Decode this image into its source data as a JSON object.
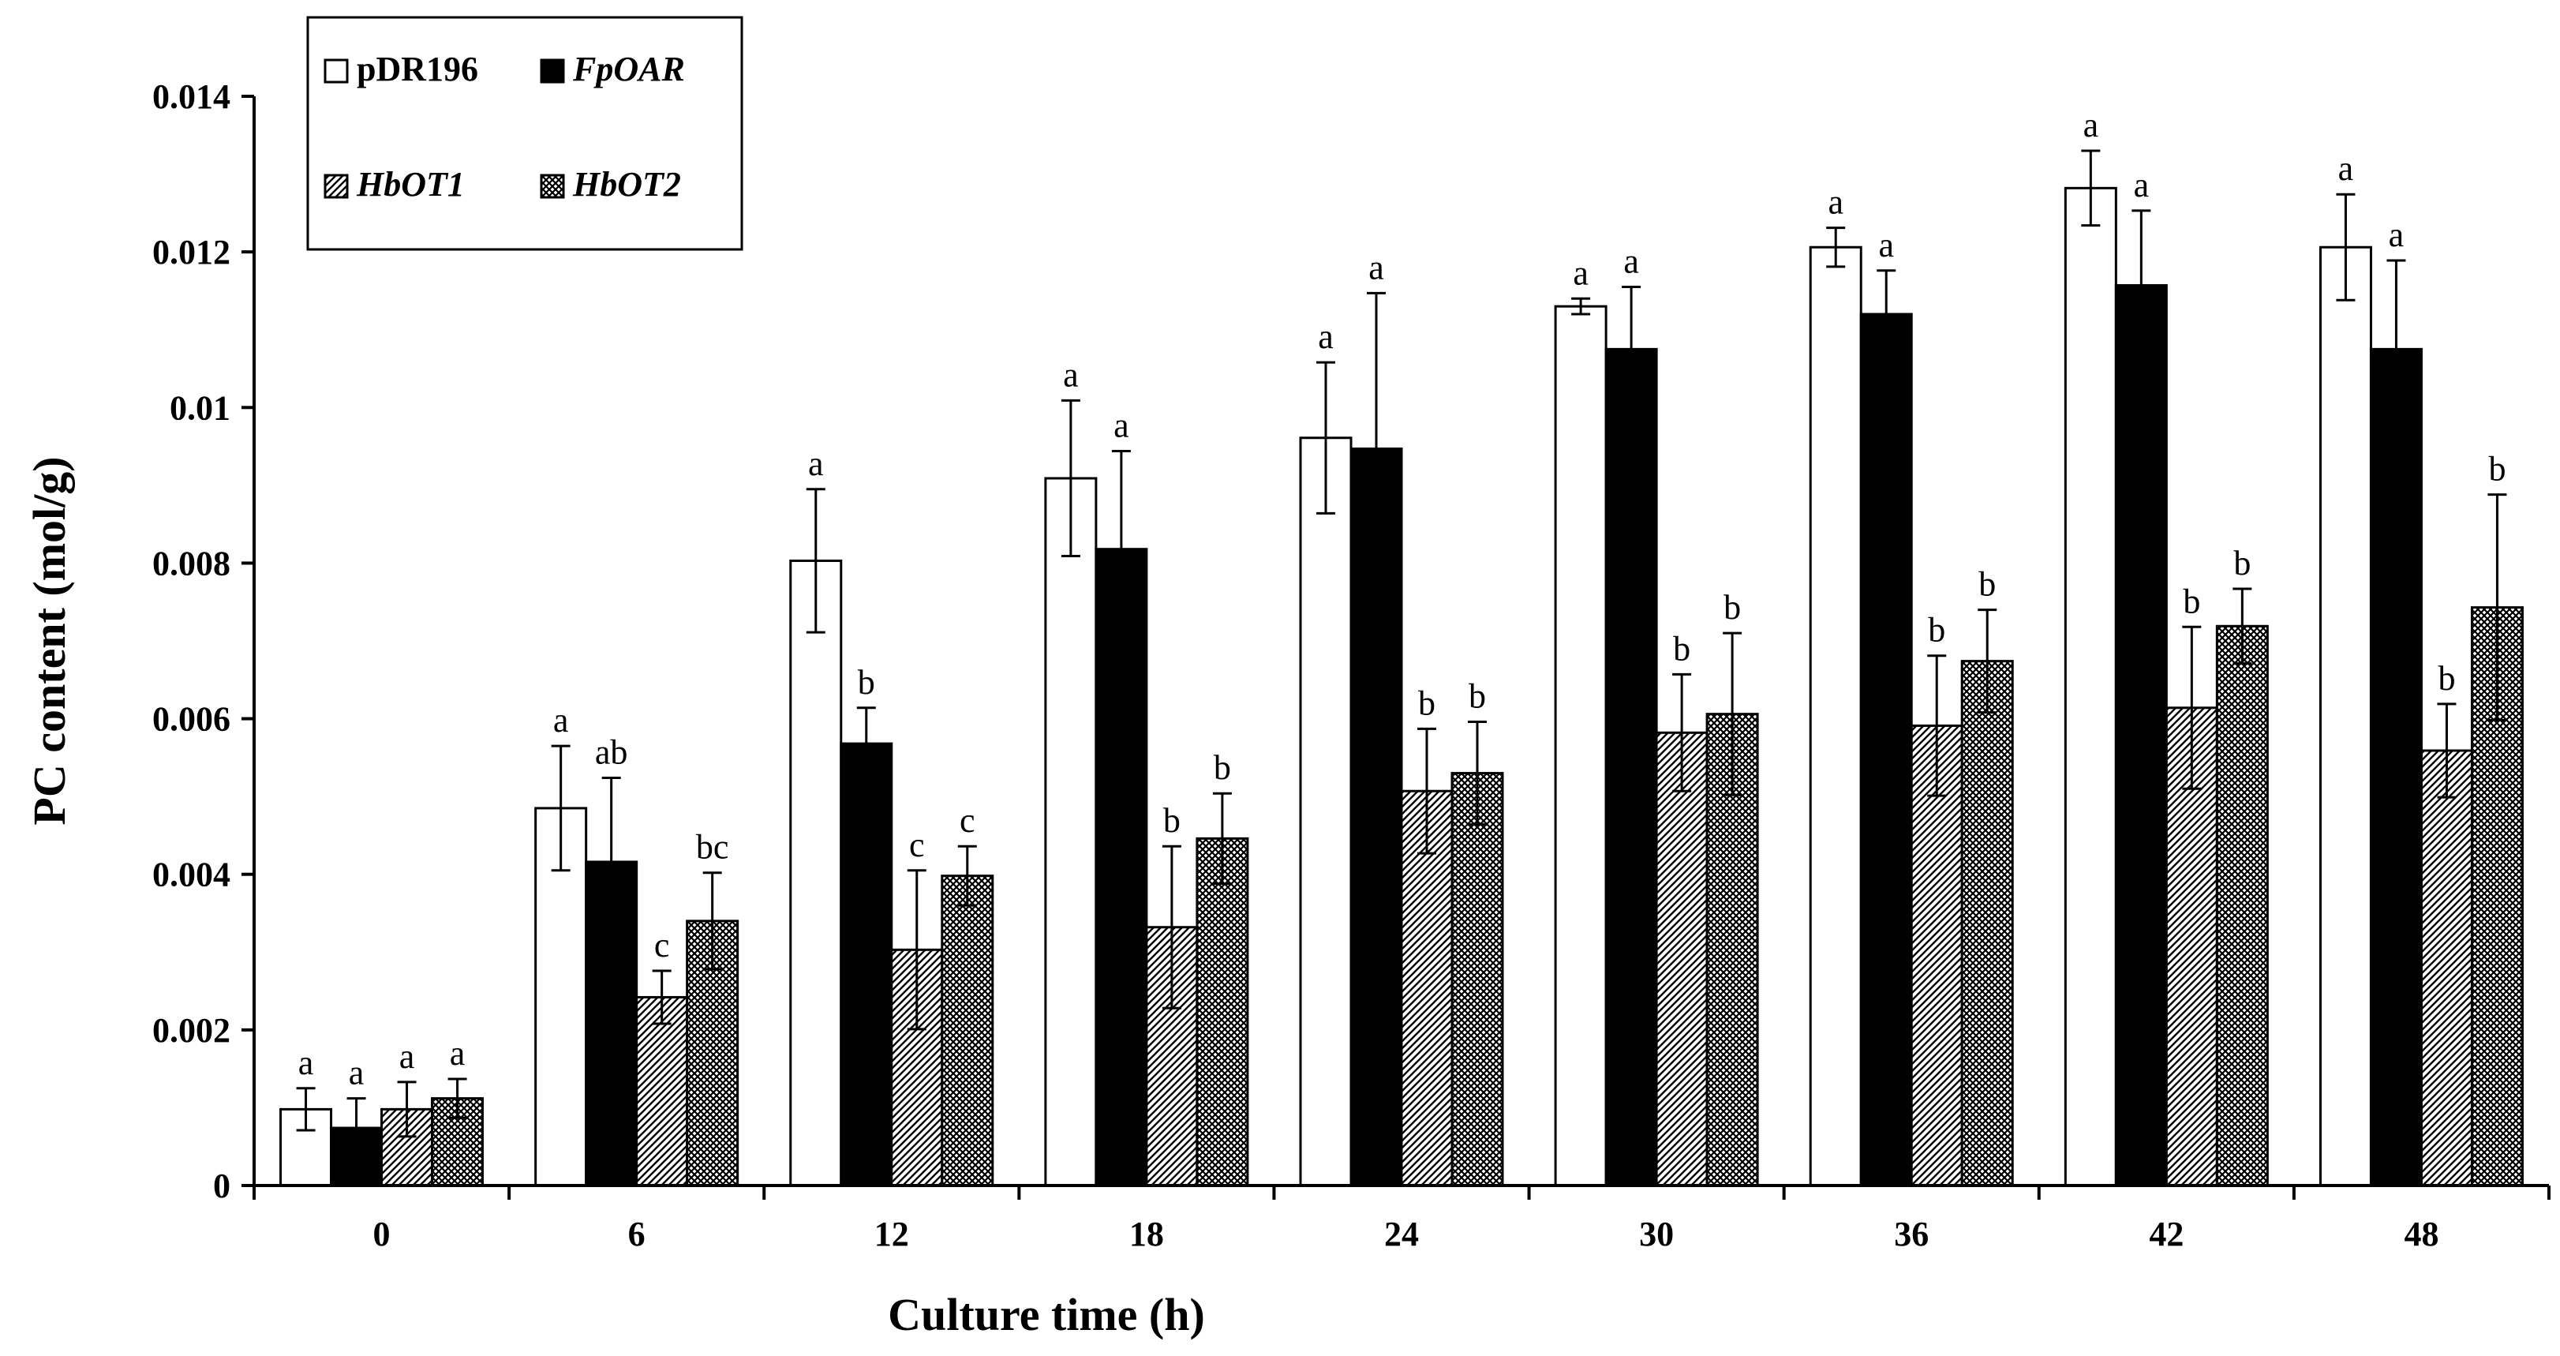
{
  "chart_data": {
    "type": "bar",
    "title": "",
    "xlabel": "Culture time (h)",
    "ylabel": "PC content (mol/g)",
    "ylim": [
      0,
      0.014
    ],
    "y_ticks": [
      "0",
      "0.002",
      "0.004",
      "0.006",
      "0.008",
      "0.01",
      "0.012",
      "0.014"
    ],
    "grid": false,
    "legend_position": "top-left",
    "categories": [
      "0",
      "6",
      "12",
      "18",
      "24",
      "30",
      "36",
      "42",
      "48"
    ],
    "series": [
      {
        "name": "pDR196",
        "italic": false,
        "pattern": "open",
        "values": [
          0.00098,
          0.00485,
          0.00803,
          0.00909,
          0.00961,
          0.0113,
          0.01206,
          0.01282,
          0.01206
        ],
        "errors": [
          0.00027,
          0.0008,
          0.00092,
          0.001,
          0.00097,
          0.0001,
          0.00025,
          0.00048,
          0.00068
        ],
        "labels": [
          "a",
          "a",
          "a",
          "a",
          "a",
          "a",
          "a",
          "a",
          "a"
        ]
      },
      {
        "name": "FpOAR",
        "italic": true,
        "pattern": "solid",
        "values": [
          0.00074,
          0.00416,
          0.00568,
          0.00818,
          0.00947,
          0.01075,
          0.0112,
          0.01157,
          0.01075
        ],
        "errors": [
          0.00038,
          0.00108,
          0.00046,
          0.00126,
          0.002,
          0.0008,
          0.00056,
          0.00096,
          0.00114
        ],
        "labels": [
          "a",
          "ab",
          "b",
          "a",
          "a",
          "a",
          "a",
          "a",
          "a"
        ]
      },
      {
        "name": "HbOT1",
        "italic": true,
        "pattern": "diagonal",
        "values": [
          0.00098,
          0.00242,
          0.00303,
          0.00332,
          0.00507,
          0.00582,
          0.00591,
          0.00614,
          0.00559
        ],
        "errors": [
          0.00035,
          0.00034,
          0.00102,
          0.00104,
          0.0008,
          0.00075,
          0.0009,
          0.00104,
          0.0006
        ],
        "labels": [
          "a",
          "c",
          "c",
          "b",
          "b",
          "b",
          "b",
          "b",
          "b"
        ]
      },
      {
        "name": "HbOT2",
        "italic": true,
        "pattern": "crosshatch",
        "values": [
          0.00112,
          0.0034,
          0.00398,
          0.00446,
          0.0053,
          0.00606,
          0.00674,
          0.00719,
          0.00743
        ],
        "errors": [
          0.00025,
          0.00062,
          0.00038,
          0.00058,
          0.00066,
          0.00104,
          0.00066,
          0.00048,
          0.00145
        ],
        "labels": [
          "a",
          "bc",
          "c",
          "b",
          "b",
          "b",
          "b",
          "b",
          "b"
        ]
      }
    ]
  }
}
